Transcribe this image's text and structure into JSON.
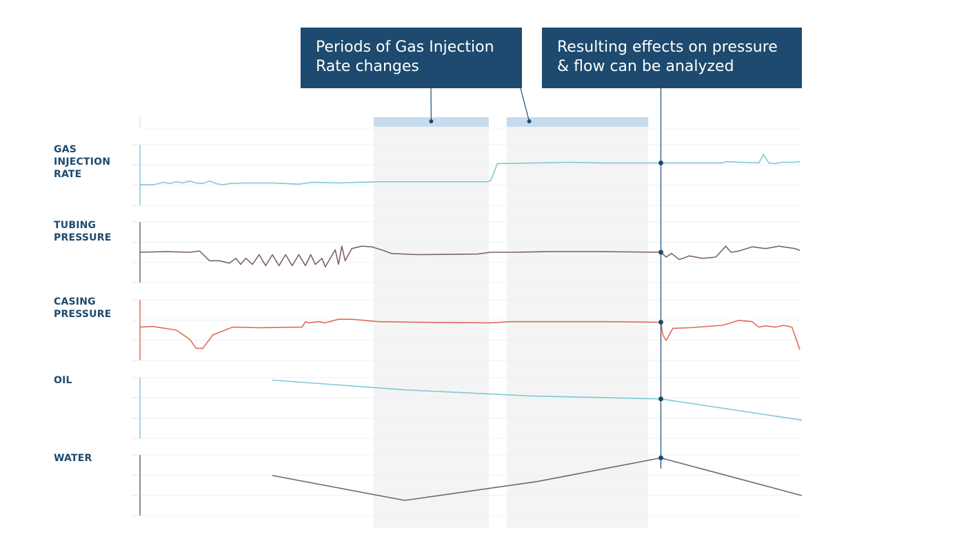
{
  "callouts": {
    "left": {
      "line1": "Periods of Gas Injection",
      "line2": "Rate changes"
    },
    "right": {
      "line1": "Resulting effects on pressure",
      "line2": "& flow can be analyzed"
    }
  },
  "panel_labels": {
    "gas_injection_rate": [
      "GAS",
      "INJECTION",
      "RATE"
    ],
    "tubing_pressure": [
      "TUBING",
      "PRESSURE"
    ],
    "casing_pressure": [
      "CASING",
      "PRESSURE"
    ],
    "oil": [
      "OIL"
    ],
    "water": [
      "WATER"
    ]
  },
  "colors": {
    "callout_bg": "#1d4a6e",
    "label": "#1d4a6e",
    "gas_injection_rate": "#7ec8d3",
    "tubing_pressure": "#7b6460",
    "casing_pressure": "#e06a55",
    "oil": "#7ec8d3",
    "water": "#5f6b7a",
    "period_band": "#f4f4f5",
    "period_bar": "#c7dbee",
    "marker": "#1d4a6e"
  },
  "chart_data": {
    "type": "line",
    "x_range": [
      0,
      1000
    ],
    "marker_x": 787,
    "highlight_periods": [
      [
        353,
        527
      ],
      [
        554,
        768
      ]
    ],
    "panels": [
      {
        "name": "gas_injection_rate",
        "ylim": [
          0,
          100
        ],
        "series": [
          {
            "color": "#7ec8d3",
            "points": [
              [
                0,
                34
              ],
              [
                20,
                34
              ],
              [
                35,
                38
              ],
              [
                45,
                36
              ],
              [
                55,
                39
              ],
              [
                65,
                37
              ],
              [
                75,
                40
              ],
              [
                85,
                37
              ],
              [
                95,
                36
              ],
              [
                105,
                40
              ],
              [
                115,
                36
              ],
              [
                125,
                34
              ],
              [
                135,
                36
              ],
              [
                160,
                37
              ],
              [
                200,
                37
              ],
              [
                240,
                35
              ],
              [
                260,
                38
              ],
              [
                300,
                37
              ],
              [
                360,
                39
              ],
              [
                420,
                39
              ],
              [
                495,
                39
              ],
              [
                525,
                39
              ],
              [
                530,
                41
              ],
              [
                540,
                69
              ],
              [
                600,
                70
              ],
              [
                650,
                71
              ],
              [
                700,
                70
              ],
              [
                787,
                70
              ],
              [
                800,
                70
              ],
              [
                880,
                70
              ],
              [
                885,
                72
              ],
              [
                935,
                70
              ],
              [
                942,
                84
              ],
              [
                950,
                70
              ],
              [
                960,
                69
              ],
              [
                970,
                71
              ],
              [
                990,
                71
              ],
              [
                997,
                72
              ]
            ]
          }
        ]
      },
      {
        "name": "tubing_pressure",
        "ylim": [
          0,
          100
        ],
        "series": [
          {
            "color": "#7b6460",
            "points": [
              [
                0,
                50
              ],
              [
                40,
                51
              ],
              [
                75,
                50
              ],
              [
                90,
                52
              ],
              [
                105,
                36
              ],
              [
                120,
                36
              ],
              [
                135,
                32
              ],
              [
                145,
                40
              ],
              [
                152,
                30
              ],
              [
                160,
                40
              ],
              [
                170,
                30
              ],
              [
                180,
                46
              ],
              [
                190,
                28
              ],
              [
                200,
                46
              ],
              [
                210,
                28
              ],
              [
                220,
                46
              ],
              [
                230,
                28
              ],
              [
                240,
                46
              ],
              [
                250,
                28
              ],
              [
                258,
                46
              ],
              [
                265,
                30
              ],
              [
                275,
                40
              ],
              [
                280,
                26
              ],
              [
                295,
                54
              ],
              [
                300,
                30
              ],
              [
                305,
                60
              ],
              [
                310,
                36
              ],
              [
                320,
                56
              ],
              [
                335,
                60
              ],
              [
                350,
                59
              ],
              [
                365,
                54
              ],
              [
                380,
                48
              ],
              [
                420,
                46
              ],
              [
                510,
                47
              ],
              [
                530,
                50
              ],
              [
                560,
                50
              ],
              [
                620,
                51
              ],
              [
                700,
                51
              ],
              [
                787,
                50
              ],
              [
                795,
                42
              ],
              [
                803,
                48
              ],
              [
                815,
                38
              ],
              [
                830,
                44
              ],
              [
                850,
                40
              ],
              [
                870,
                42
              ],
              [
                885,
                60
              ],
              [
                893,
                50
              ],
              [
                905,
                52
              ],
              [
                925,
                59
              ],
              [
                945,
                56
              ],
              [
                965,
                60
              ],
              [
                990,
                56
              ],
              [
                997,
                53
              ]
            ]
          }
        ]
      },
      {
        "name": "casing_pressure",
        "ylim": [
          0,
          100
        ],
        "series": [
          {
            "color": "#e06a55",
            "points": [
              [
                0,
                55
              ],
              [
                20,
                56
              ],
              [
                55,
                50
              ],
              [
                75,
                35
              ],
              [
                85,
                20
              ],
              [
                95,
                20
              ],
              [
                110,
                42
              ],
              [
                140,
                55
              ],
              [
                180,
                54
              ],
              [
                245,
                55
              ],
              [
                250,
                64
              ],
              [
                255,
                62
              ],
              [
                270,
                64
              ],
              [
                280,
                62
              ],
              [
                300,
                68
              ],
              [
                320,
                68
              ],
              [
                360,
                64
              ],
              [
                420,
                63
              ],
              [
                530,
                62
              ],
              [
                560,
                64
              ],
              [
                700,
                64
              ],
              [
                787,
                63
              ],
              [
                790,
                42
              ],
              [
                795,
                33
              ],
              [
                805,
                53
              ],
              [
                830,
                54
              ],
              [
                880,
                58
              ],
              [
                905,
                66
              ],
              [
                925,
                64
              ],
              [
                935,
                55
              ],
              [
                945,
                57
              ],
              [
                960,
                55
              ],
              [
                972,
                58
              ],
              [
                985,
                55
              ],
              [
                997,
                18
              ]
            ]
          }
        ]
      },
      {
        "name": "oil",
        "ylim": [
          0,
          100
        ],
        "series": [
          {
            "color": "#7ec8d3",
            "points": [
              [
                200,
                96
              ],
              [
                400,
                80
              ],
              [
                587,
                70
              ],
              [
                787,
                65
              ],
              [
                1000,
                30
              ]
            ]
          }
        ]
      },
      {
        "name": "water",
        "ylim": [
          0,
          100
        ],
        "series": [
          {
            "color": "#5f6b7a",
            "points": [
              [
                200,
                66
              ],
              [
                400,
                25
              ],
              [
                600,
                56
              ],
              [
                787,
                95
              ],
              [
                1000,
                33
              ]
            ]
          }
        ]
      }
    ]
  }
}
